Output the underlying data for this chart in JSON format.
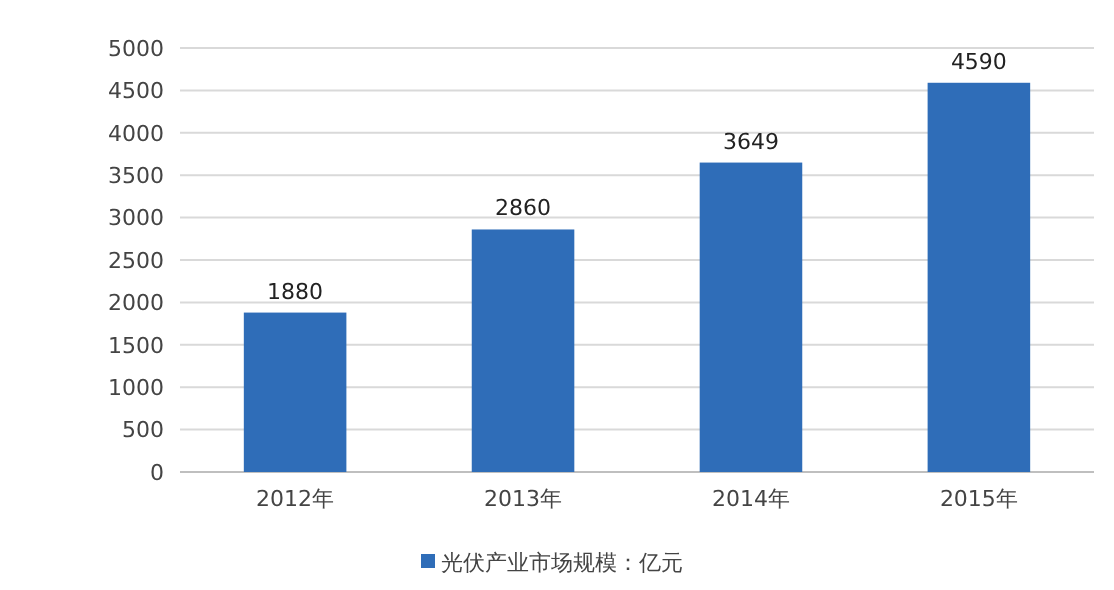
{
  "chart_data": {
    "type": "bar",
    "categories": [
      "2012年",
      "2013年",
      "2014年",
      "2015年"
    ],
    "series": [
      {
        "name": "光伏产业市场规模：亿元",
        "color": "#2f6db8",
        "values": [
          1880,
          2860,
          3649,
          4590
        ]
      }
    ],
    "ylim": [
      0,
      5000
    ],
    "yticks": [
      0,
      500,
      1000,
      1500,
      2000,
      2500,
      3000,
      3500,
      4000,
      4500,
      5000
    ],
    "grid": "y",
    "data_labels": true,
    "legend": "bottom"
  }
}
